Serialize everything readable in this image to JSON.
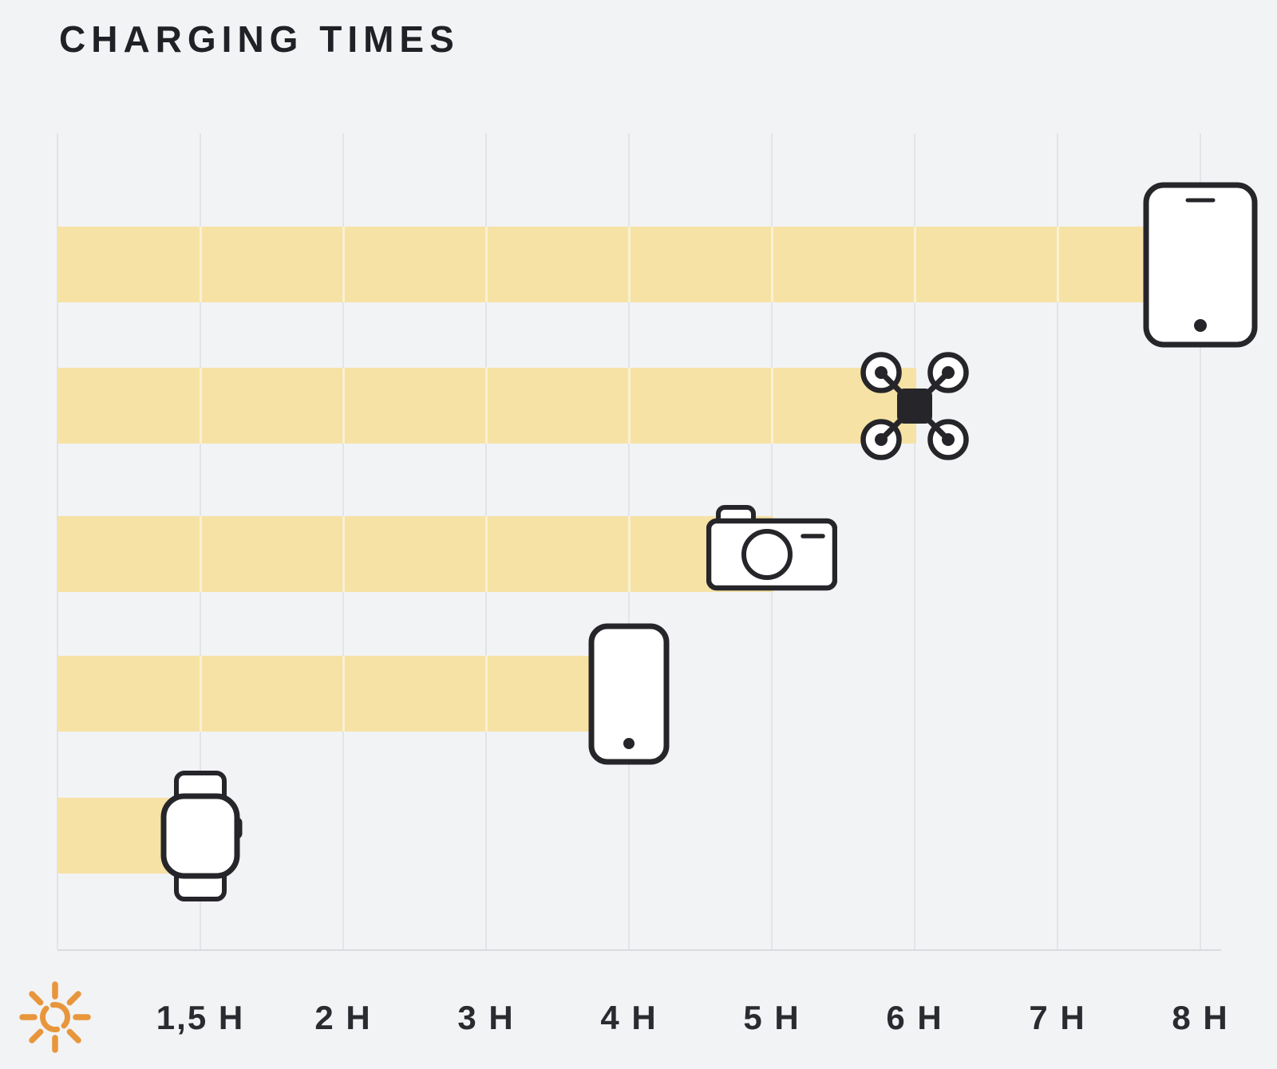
{
  "title": "CHARGING TIMES",
  "colors": {
    "background": "#F2F3F5",
    "bar": "#F6E2A5",
    "gridline": "#E2E4E8",
    "axis_line": "#DADBDF",
    "text": "#2A2B30",
    "title_text": "#1F2126",
    "icon_stroke": "#26262A",
    "icon_fill": "#FFFFFF",
    "sun": "#E8963C"
  },
  "chart_data": {
    "type": "bar",
    "orientation": "horizontal",
    "title": "CHARGING TIMES",
    "categories": [
      "Tablet",
      "Drone",
      "Camera",
      "Smartphone",
      "Smartwatch"
    ],
    "values_hours": [
      8,
      6,
      5,
      4,
      1.5
    ],
    "value_labels": [
      "8 H",
      "6 H",
      "5 H",
      "4 H",
      "1,5 H"
    ],
    "icons": [
      "tablet-icon",
      "drone-icon",
      "camera-icon",
      "smartphone-icon",
      "smartwatch-icon"
    ],
    "unit": "H",
    "bar_color": "#F6E2A5",
    "grid": true,
    "legend": false,
    "x_axis": {
      "range_hours": [
        0,
        8
      ],
      "tick_values": [
        0,
        1.5,
        2,
        3,
        4,
        5,
        6,
        7,
        8
      ],
      "tick_labels": [
        "",
        "1,5 H",
        "2 H",
        "3 H",
        "4 H",
        "5 H",
        "6 H",
        "7 H",
        "8 H"
      ],
      "zero_tick_icon": "sun-icon",
      "scale_note": "ticks are equally spaced (non-linear between 0 and 1.5)"
    }
  }
}
